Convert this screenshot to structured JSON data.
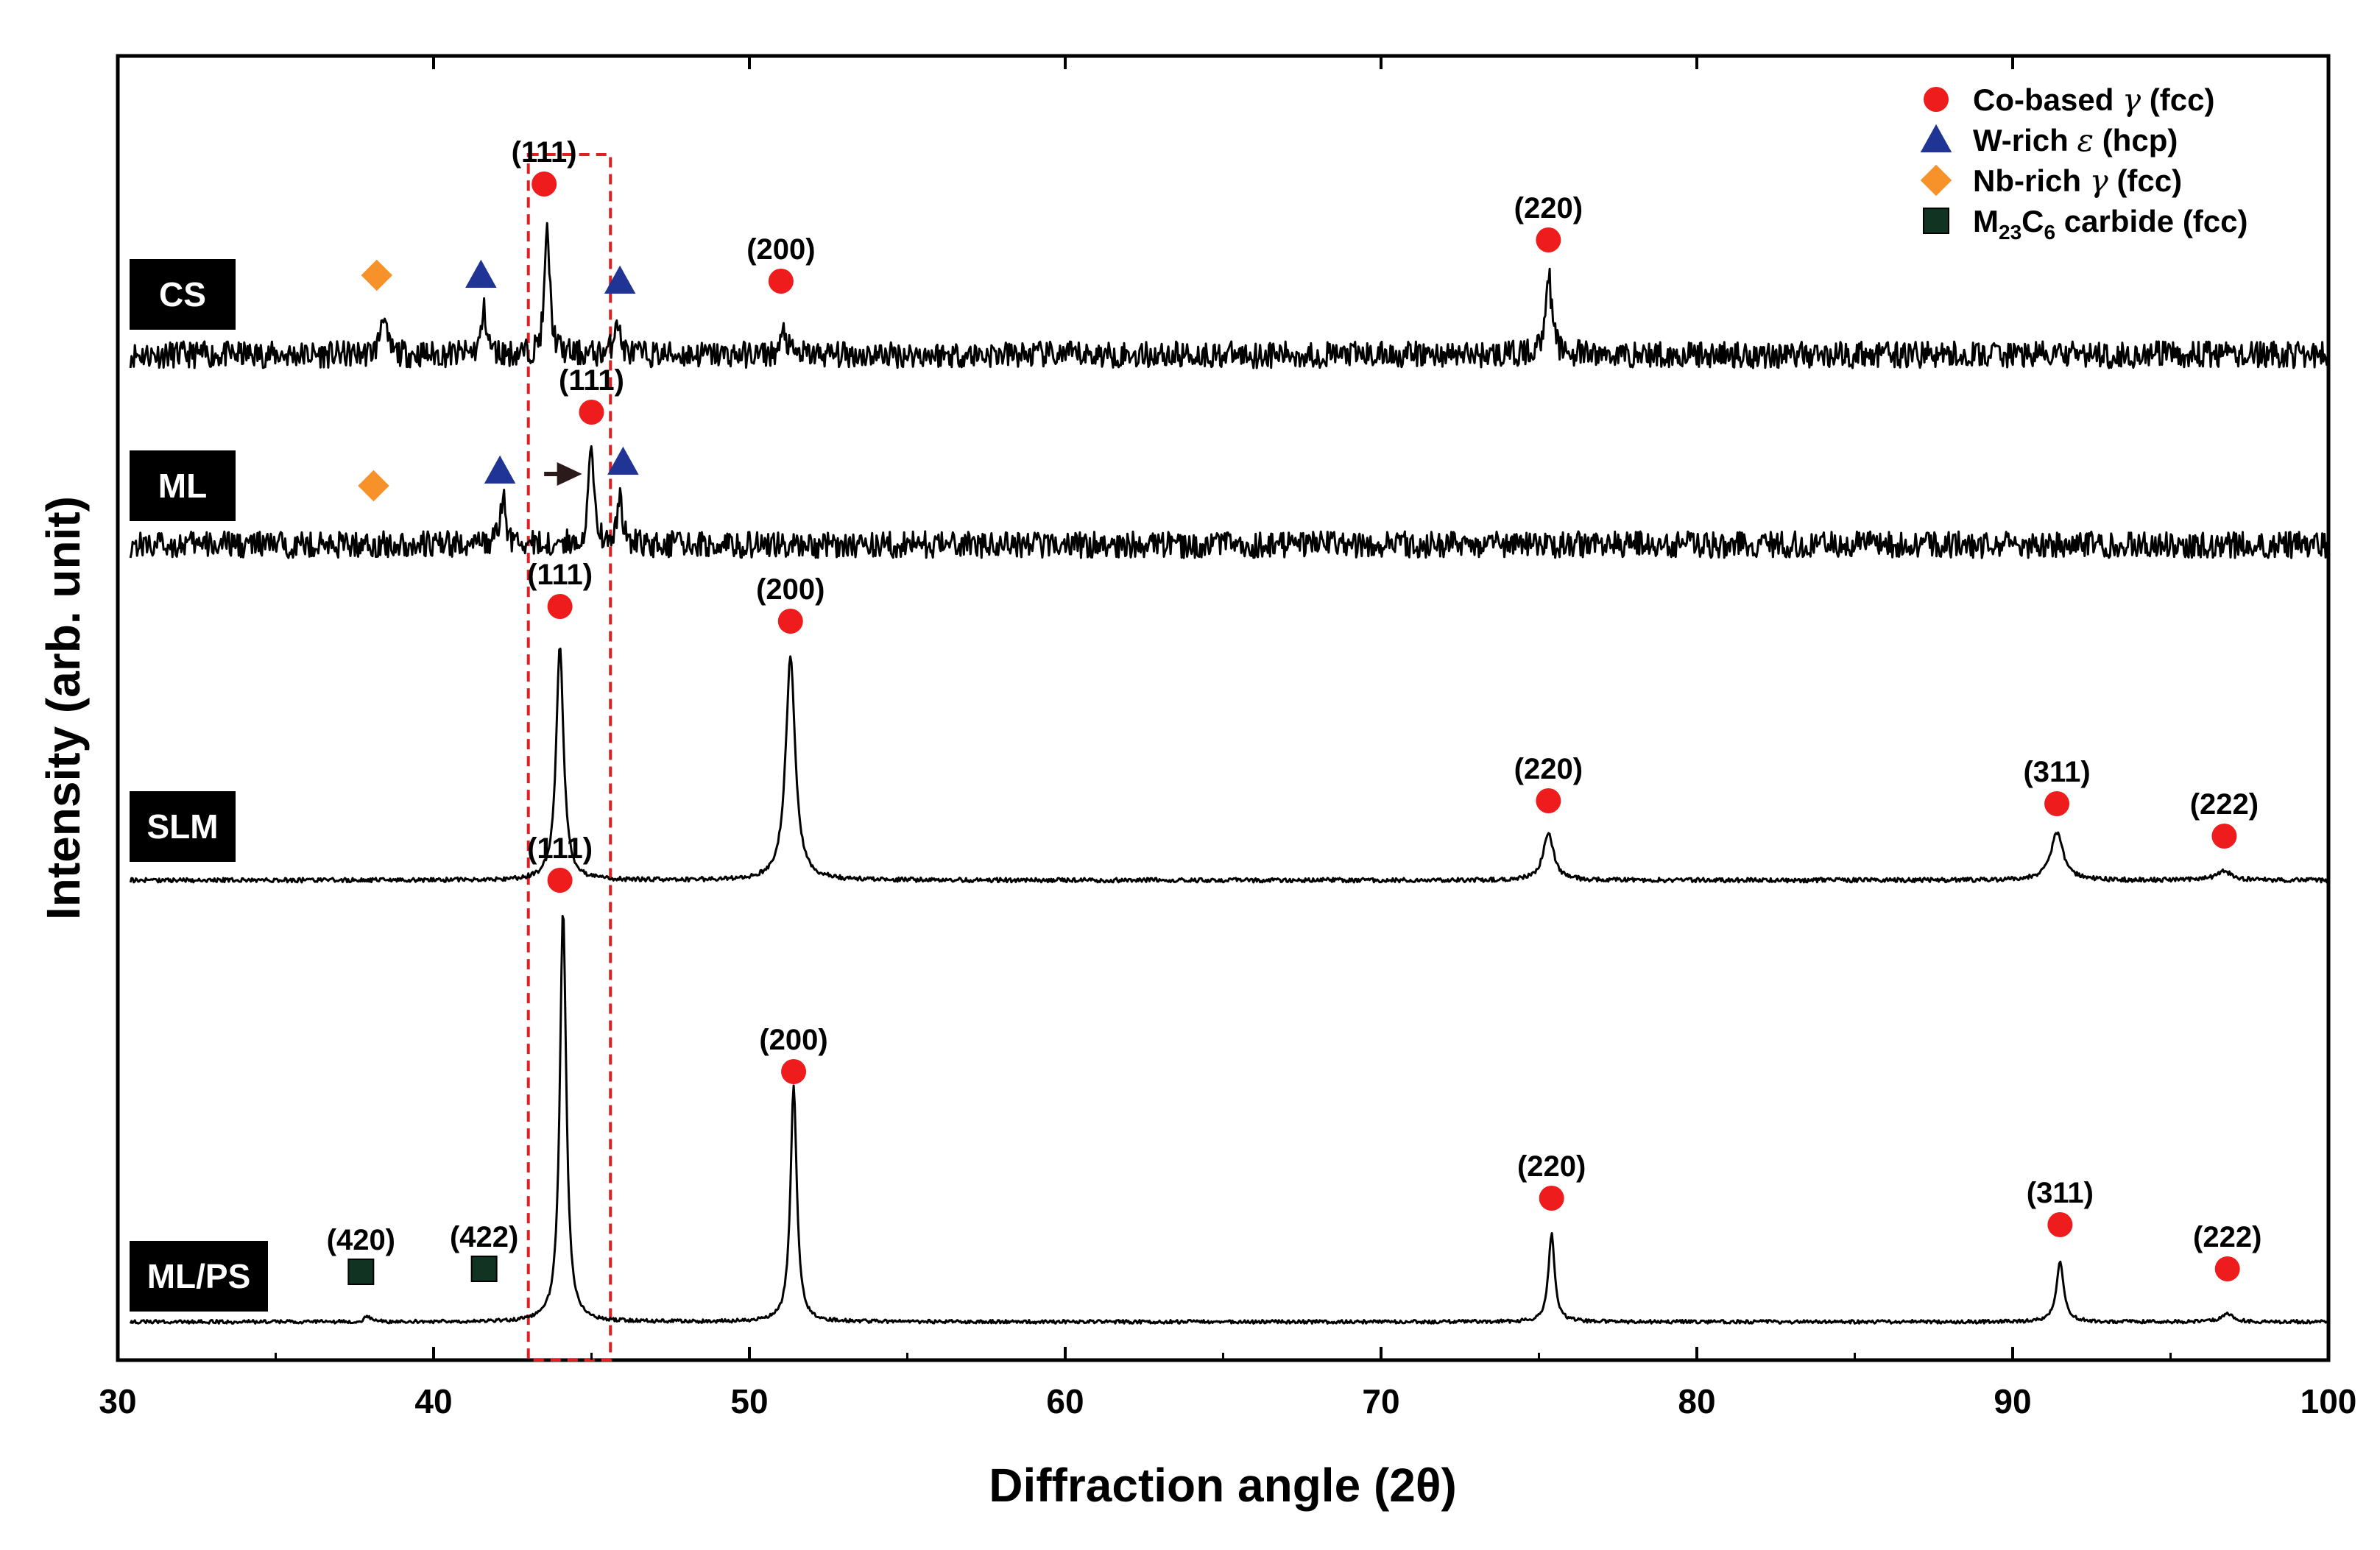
{
  "chart_data": {
    "type": "line",
    "title": "",
    "xlabel": "Diffraction angle (2θ)",
    "ylabel": "Intensity (arb. unit)",
    "xlim": [
      30,
      100
    ],
    "xticks": [
      30,
      40,
      50,
      60,
      70,
      80,
      90,
      100
    ],
    "grid": false,
    "legend_position": "top-right",
    "legend": [
      {
        "marker": "circle",
        "color": "#ee1c1c",
        "label_main": "Co-based ",
        "label_greek": "γ",
        "label_tail": " (fcc)"
      },
      {
        "marker": "triangle",
        "color": "#1f3494",
        "label_main": "W-rich ",
        "label_greek": "ε",
        "label_tail": " (hcp)"
      },
      {
        "marker": "diamond",
        "color": "#f7922a",
        "label_main": "Nb-rich ",
        "label_greek": "γ",
        "label_tail": " (fcc)"
      },
      {
        "marker": "square",
        "color": "#113322",
        "label_main": "M",
        "label_sub1": "23",
        "label_mid": "C",
        "label_sub2": "6",
        "label_tail": " carbide (fcc)"
      }
    ],
    "highlight_region": {
      "x_from": 43.0,
      "x_to": 45.6,
      "style": "red dashed box"
    },
    "shift_arrow": {
      "series": "ML",
      "from": 43.5,
      "to": 44.7
    },
    "series": [
      {
        "name": "CS",
        "noise": 0.9,
        "peaks": [
          {
            "x": 38.4,
            "h": 1.5,
            "w": 0.1
          },
          {
            "x": 41.6,
            "h": 1.5,
            "w": 0.1
          },
          {
            "x": 43.6,
            "h": 4.2,
            "w": 0.1
          },
          {
            "x": 45.8,
            "h": 1.3,
            "w": 0.1
          },
          {
            "x": 51.1,
            "h": 0.8,
            "w": 0.1
          },
          {
            "x": 75.3,
            "h": 2.8,
            "w": 0.12
          }
        ],
        "markers": [
          {
            "x": 38.2,
            "y": 2.7,
            "type": "diamond"
          },
          {
            "x": 41.5,
            "y": 2.7,
            "type": "triangle"
          },
          {
            "x": 43.5,
            "y": 5.8,
            "type": "circle",
            "label": "(111)"
          },
          {
            "x": 45.9,
            "y": 2.5,
            "type": "triangle"
          },
          {
            "x": 51.0,
            "y": 2.5,
            "type": "circle",
            "label": "(200)"
          },
          {
            "x": 75.3,
            "y": 3.9,
            "type": "circle",
            "label": "(220)"
          }
        ]
      },
      {
        "name": "ML",
        "noise": 0.9,
        "peaks": [
          {
            "x": 42.2,
            "h": 1.6,
            "w": 0.1
          },
          {
            "x": 45.0,
            "h": 3.5,
            "w": 0.1
          },
          {
            "x": 45.9,
            "h": 1.5,
            "w": 0.1
          }
        ],
        "markers": [
          {
            "x": 38.1,
            "y": 2.0,
            "type": "diamond"
          },
          {
            "x": 42.1,
            "y": 2.5,
            "type": "triangle"
          },
          {
            "x": 45.0,
            "y": 4.5,
            "type": "circle",
            "label": "(111)"
          },
          {
            "x": 46.0,
            "y": 2.8,
            "type": "triangle"
          }
        ]
      },
      {
        "name": "SLM",
        "noise": 0.15,
        "peaks": [
          {
            "x": 44.0,
            "h": 8.0,
            "w": 0.14
          },
          {
            "x": 51.3,
            "h": 7.6,
            "w": 0.18
          },
          {
            "x": 75.3,
            "h": 1.6,
            "w": 0.2
          },
          {
            "x": 91.4,
            "h": 1.6,
            "w": 0.24
          },
          {
            "x": 96.7,
            "h": 0.3,
            "w": 0.3
          }
        ],
        "markers": [
          {
            "x": 44.0,
            "y": 9.3,
            "type": "circle",
            "label": "(111)"
          },
          {
            "x": 51.3,
            "y": 8.8,
            "type": "circle",
            "label": "(200)"
          },
          {
            "x": 75.3,
            "y": 2.7,
            "type": "circle",
            "label": "(220)"
          },
          {
            "x": 91.4,
            "y": 2.6,
            "type": "circle",
            "label": "(311)"
          },
          {
            "x": 96.7,
            "y": 1.5,
            "type": "circle",
            "label": "(222)"
          }
        ]
      },
      {
        "name": "ML/PS",
        "noise": 0.12,
        "peaks": [
          {
            "x": 44.1,
            "h": 14.0,
            "w": 0.12
          },
          {
            "x": 51.4,
            "h": 8.0,
            "w": 0.12
          },
          {
            "x": 75.4,
            "h": 3.0,
            "w": 0.12
          },
          {
            "x": 91.5,
            "h": 2.0,
            "w": 0.14
          },
          {
            "x": 96.8,
            "h": 0.3,
            "w": 0.2
          },
          {
            "x": 37.9,
            "h": 0.2,
            "w": 0.1
          }
        ],
        "markers": [
          {
            "x": 37.7,
            "y": 1.7,
            "type": "square",
            "label": "(420)"
          },
          {
            "x": 41.6,
            "y": 1.8,
            "type": "square",
            "label": "(422)"
          },
          {
            "x": 44.0,
            "y": 15.0,
            "type": "circle",
            "label": "(111)"
          },
          {
            "x": 51.4,
            "y": 8.5,
            "type": "circle",
            "label": "(200)"
          },
          {
            "x": 75.4,
            "y": 4.2,
            "type": "circle",
            "label": "(220)"
          },
          {
            "x": 91.5,
            "y": 3.3,
            "type": "circle",
            "label": "(311)"
          },
          {
            "x": 96.8,
            "y": 1.8,
            "type": "circle",
            "label": "(222)"
          }
        ]
      }
    ]
  }
}
